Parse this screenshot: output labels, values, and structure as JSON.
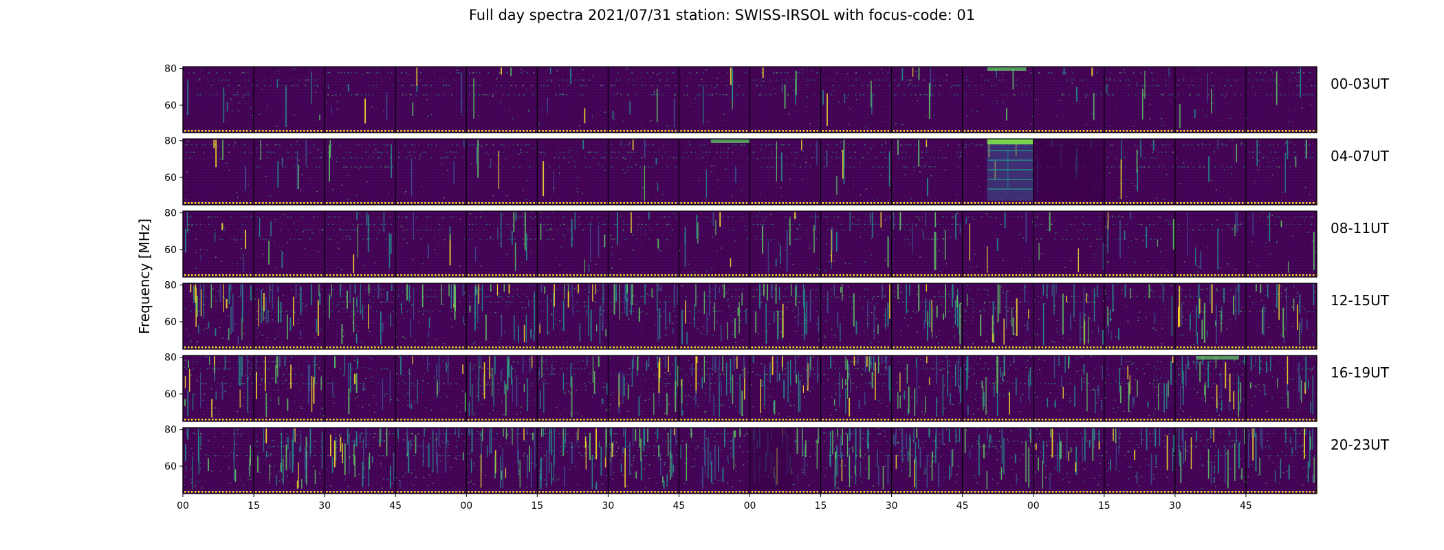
{
  "title": "Full day spectra 2021/07/31 station: SWISS-IRSOL with focus-code: 01",
  "chart_data": {
    "type": "heatmap",
    "title": "Full day spectra 2021/07/31 station: SWISS-IRSOL with focus-code: 01",
    "ylabel": "Frequency [MHz]",
    "xlabel": "",
    "y_ticks": [
      80,
      60
    ],
    "y_range": [
      45,
      81
    ],
    "x_ticks": [
      "00",
      "15",
      "30",
      "45",
      "00",
      "15",
      "30",
      "45",
      "00",
      "15",
      "30",
      "45",
      "00",
      "15",
      "30",
      "45"
    ],
    "panels_per_row": 16,
    "colormap": "viridis",
    "colors": {
      "background": "#440154",
      "mid": "#3b528b",
      "teal": "#21918c",
      "green": "#5ec962",
      "yellow": "#fde725"
    },
    "rows": [
      {
        "label": "00-03UT",
        "activity": 0.12,
        "events": [
          {
            "panel": 11,
            "pos": 0.35,
            "width": 0.55,
            "kind": "band_top"
          }
        ]
      },
      {
        "label": "04-07UT",
        "activity": 0.14,
        "events": [
          {
            "panel": 7,
            "pos": 0.45,
            "width": 0.55,
            "kind": "band_top"
          },
          {
            "panel": 11,
            "pos": 0.35,
            "width": 0.65,
            "kind": "burst_block"
          },
          {
            "panel": 12,
            "pos": 0.0,
            "width": 1.0,
            "kind": "dark_block"
          }
        ]
      },
      {
        "label": "08-11UT",
        "activity": 0.2,
        "events": [
          {
            "panel": 10,
            "pos": 0.6,
            "width": 0.1,
            "kind": "vertical"
          },
          {
            "panel": 15,
            "pos": 0.95,
            "width": 0.05,
            "kind": "vertical"
          }
        ]
      },
      {
        "label": "12-15UT",
        "activity": 0.62,
        "events": []
      },
      {
        "label": "16-19UT",
        "activity": 0.68,
        "events": [
          {
            "panel": 14,
            "pos": 0.3,
            "width": 0.6,
            "kind": "band_top"
          }
        ]
      },
      {
        "label": "20-23UT",
        "activity": 0.74,
        "events": [
          {
            "panel": 8,
            "pos": 0.0,
            "width": 0.6,
            "kind": "dark_block"
          }
        ]
      }
    ]
  }
}
